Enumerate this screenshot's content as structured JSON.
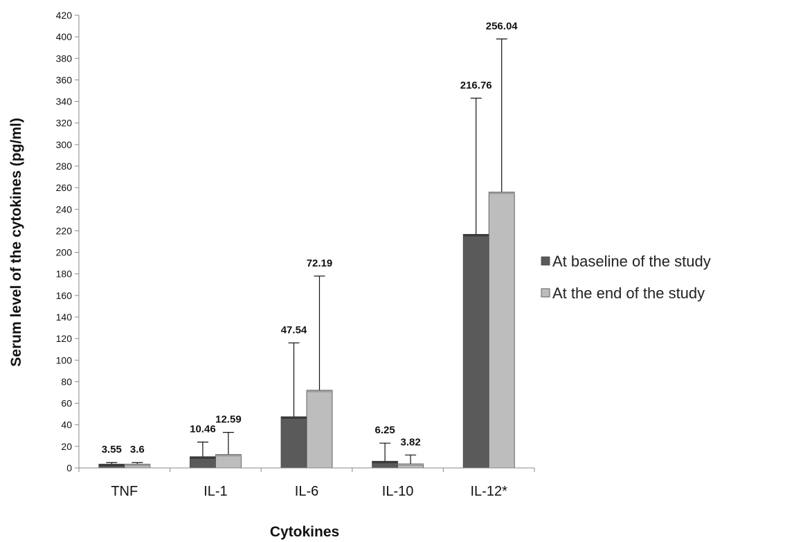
{
  "chart_data": {
    "type": "bar",
    "title": "",
    "xlabel": "Cytokines",
    "ylabel": "Serum level of the cytokines (pg/ml)",
    "ylim": [
      0,
      420
    ],
    "y_ticks": [
      0,
      20,
      40,
      60,
      80,
      100,
      120,
      140,
      160,
      180,
      200,
      220,
      240,
      260,
      280,
      300,
      320,
      340,
      360,
      380,
      400,
      420
    ],
    "categories": [
      "TNF",
      "IL-1",
      "IL-6",
      "IL-10",
      "IL-12*"
    ],
    "series": [
      {
        "name": "At baseline of the study",
        "color": "#5a5a5a",
        "values": [
          3.55,
          10.46,
          47.54,
          6.25,
          216.76
        ],
        "labels": [
          "3.55",
          "10.46",
          "47.54",
          "6.25",
          "216.76"
        ],
        "error_upper": [
          5,
          24,
          116,
          23,
          343
        ]
      },
      {
        "name": "At the end of the study",
        "color": "#bdbdbd",
        "values": [
          3.6,
          12.59,
          72.19,
          3.82,
          256.04
        ],
        "labels": [
          "3.6",
          "12.59",
          "72.19",
          "3.82",
          "256.04"
        ],
        "error_upper": [
          5,
          33,
          178,
          12,
          398
        ]
      }
    ],
    "grid": false,
    "legend_position": "right"
  }
}
